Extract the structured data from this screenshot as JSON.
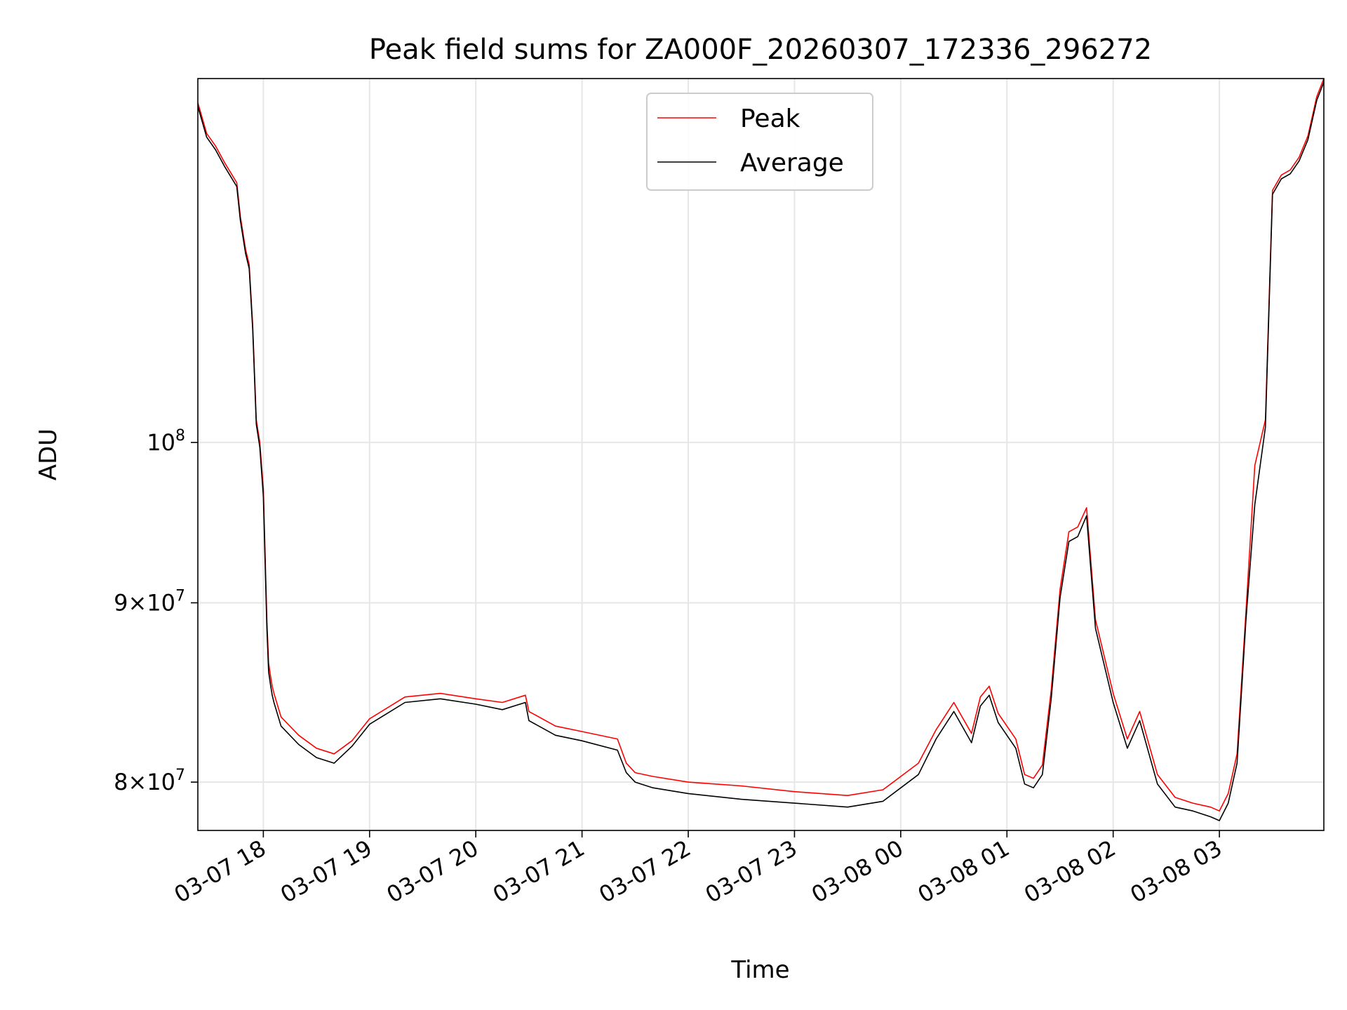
{
  "chart_data": {
    "type": "line",
    "title": "Peak field sums for ZA000F_20260307_172336_296272",
    "xlabel": "Time",
    "ylabel": "ADU",
    "yscale": "log",
    "grid": true,
    "legend_position": "upper-center",
    "xlim": [
      "2026-03-07 17:23",
      "2026-03-08 03:59"
    ],
    "ylim": [
      77500000,
      127000000
    ],
    "x_ticks": [
      {
        "t": "2026-03-07 18:00",
        "label": "03-07 18"
      },
      {
        "t": "2026-03-07 19:00",
        "label": "03-07 19"
      },
      {
        "t": "2026-03-07 20:00",
        "label": "03-07 20"
      },
      {
        "t": "2026-03-07 21:00",
        "label": "03-07 21"
      },
      {
        "t": "2026-03-07 22:00",
        "label": "03-07 22"
      },
      {
        "t": "2026-03-07 23:00",
        "label": "03-07 23"
      },
      {
        "t": "2026-03-08 00:00",
        "label": "03-08 00"
      },
      {
        "t": "2026-03-08 01:00",
        "label": "03-08 01"
      },
      {
        "t": "2026-03-08 02:00",
        "label": "03-08 02"
      },
      {
        "t": "2026-03-08 03:00",
        "label": "03-08 03"
      }
    ],
    "y_ticks": [
      {
        "value": 80000000,
        "mant": "8",
        "base": "10",
        "exp": "7"
      },
      {
        "value": 90000000,
        "mant": "9",
        "base": "10",
        "exp": "7"
      },
      {
        "value": 100000000,
        "mant": "",
        "base": "10",
        "exp": "8"
      }
    ],
    "series": [
      {
        "name": "Peak",
        "color": "#ff0000",
        "x": [
          "2026-03-07 17:23",
          "2026-03-07 17:25",
          "2026-03-07 17:28",
          "2026-03-07 17:33",
          "2026-03-07 17:38",
          "2026-03-07 17:45",
          "2026-03-07 17:47",
          "2026-03-07 17:50",
          "2026-03-07 17:52",
          "2026-03-07 17:54",
          "2026-03-07 17:56",
          "2026-03-07 17:58",
          "2026-03-07 18:00",
          "2026-03-07 18:02",
          "2026-03-07 18:03",
          "2026-03-07 18:04",
          "2026-03-07 18:05",
          "2026-03-07 18:06",
          "2026-03-07 18:10",
          "2026-03-07 18:20",
          "2026-03-07 18:30",
          "2026-03-07 18:40",
          "2026-03-07 18:50",
          "2026-03-07 19:00",
          "2026-03-07 19:20",
          "2026-03-07 19:40",
          "2026-03-07 20:00",
          "2026-03-07 20:15",
          "2026-03-07 20:28",
          "2026-03-07 20:30",
          "2026-03-07 20:45",
          "2026-03-07 21:00",
          "2026-03-07 21:20",
          "2026-03-07 21:25",
          "2026-03-07 21:30",
          "2026-03-07 21:40",
          "2026-03-07 22:00",
          "2026-03-07 22:30",
          "2026-03-07 23:00",
          "2026-03-07 23:30",
          "2026-03-07 23:50",
          "2026-03-08 00:10",
          "2026-03-08 00:20",
          "2026-03-08 00:30",
          "2026-03-08 00:40",
          "2026-03-08 00:45",
          "2026-03-08 00:50",
          "2026-03-08 00:55",
          "2026-03-08 01:05",
          "2026-03-08 01:10",
          "2026-03-08 01:15",
          "2026-03-08 01:20",
          "2026-03-08 01:25",
          "2026-03-08 01:30",
          "2026-03-08 01:35",
          "2026-03-08 01:40",
          "2026-03-08 01:45",
          "2026-03-08 01:50",
          "2026-03-08 02:00",
          "2026-03-08 02:08",
          "2026-03-08 02:15",
          "2026-03-08 02:25",
          "2026-03-08 02:35",
          "2026-03-08 02:45",
          "2026-03-08 02:55",
          "2026-03-08 03:00",
          "2026-03-08 03:05",
          "2026-03-08 03:10",
          "2026-03-08 03:15",
          "2026-03-08 03:20",
          "2026-03-08 03:26",
          "2026-03-08 03:30",
          "2026-03-08 03:35",
          "2026-03-08 03:40",
          "2026-03-08 03:45",
          "2026-03-08 03:50",
          "2026-03-08 03:55",
          "2026-03-08 03:59"
        ],
        "values": [
          125000000,
          124000000,
          122500000,
          121500000,
          120200000,
          118600000,
          116000000,
          113500000,
          112400000,
          108000000,
          101500000,
          100000000,
          97000000,
          89000000,
          86500000,
          85800000,
          85200000,
          84800000,
          83500000,
          82500000,
          81800000,
          81500000,
          82200000,
          83400000,
          84600000,
          84800000,
          84500000,
          84300000,
          84700000,
          83800000,
          83000000,
          82700000,
          82300000,
          81000000,
          80500000,
          80300000,
          80000000,
          79800000,
          79500000,
          79300000,
          79600000,
          81000000,
          82800000,
          84300000,
          82600000,
          84600000,
          85200000,
          83700000,
          82300000,
          80400000,
          80200000,
          80900000,
          85000000,
          90800000,
          94300000,
          94600000,
          95800000,
          89000000,
          84800000,
          82300000,
          83800000,
          80400000,
          79200000,
          78900000,
          78700000,
          78500000,
          79400000,
          81500000,
          89500000,
          98500000,
          101500000,
          118000000,
          119200000,
          119600000,
          120600000,
          122300000,
          125500000,
          127000000
        ]
      },
      {
        "name": "Average",
        "color": "#000000",
        "x": [
          "2026-03-07 17:23",
          "2026-03-07 17:25",
          "2026-03-07 17:28",
          "2026-03-07 17:33",
          "2026-03-07 17:38",
          "2026-03-07 17:45",
          "2026-03-07 17:47",
          "2026-03-07 17:50",
          "2026-03-07 17:52",
          "2026-03-07 17:54",
          "2026-03-07 17:56",
          "2026-03-07 17:58",
          "2026-03-07 18:00",
          "2026-03-07 18:02",
          "2026-03-07 18:03",
          "2026-03-07 18:04",
          "2026-03-07 18:05",
          "2026-03-07 18:06",
          "2026-03-07 18:10",
          "2026-03-07 18:20",
          "2026-03-07 18:30",
          "2026-03-07 18:40",
          "2026-03-07 18:50",
          "2026-03-07 19:00",
          "2026-03-07 19:20",
          "2026-03-07 19:40",
          "2026-03-07 20:00",
          "2026-03-07 20:15",
          "2026-03-07 20:28",
          "2026-03-07 20:30",
          "2026-03-07 20:45",
          "2026-03-07 21:00",
          "2026-03-07 21:20",
          "2026-03-07 21:25",
          "2026-03-07 21:30",
          "2026-03-07 21:40",
          "2026-03-07 22:00",
          "2026-03-07 22:30",
          "2026-03-07 23:00",
          "2026-03-07 23:30",
          "2026-03-07 23:50",
          "2026-03-08 00:10",
          "2026-03-08 00:20",
          "2026-03-08 00:30",
          "2026-03-08 00:40",
          "2026-03-08 00:45",
          "2026-03-08 00:50",
          "2026-03-08 00:55",
          "2026-03-08 01:05",
          "2026-03-08 01:10",
          "2026-03-08 01:15",
          "2026-03-08 01:20",
          "2026-03-08 01:25",
          "2026-03-08 01:30",
          "2026-03-08 01:35",
          "2026-03-08 01:40",
          "2026-03-08 01:45",
          "2026-03-08 01:50",
          "2026-03-08 02:00",
          "2026-03-08 02:08",
          "2026-03-08 02:15",
          "2026-03-08 02:25",
          "2026-03-08 02:35",
          "2026-03-08 02:45",
          "2026-03-08 02:55",
          "2026-03-08 03:00",
          "2026-03-08 03:05",
          "2026-03-08 03:10",
          "2026-03-08 03:15",
          "2026-03-08 03:20",
          "2026-03-08 03:26",
          "2026-03-08 03:30",
          "2026-03-08 03:35",
          "2026-03-08 03:40",
          "2026-03-08 03:45",
          "2026-03-08 03:50",
          "2026-03-08 03:55",
          "2026-03-08 03:59"
        ],
        "values": [
          124700000,
          123700000,
          122200000,
          121200000,
          119900000,
          118300000,
          115700000,
          113200000,
          112100000,
          107700000,
          101200000,
          99700000,
          96500000,
          88500000,
          86000000,
          85300000,
          84700000,
          84300000,
          83000000,
          82000000,
          81300000,
          81000000,
          81900000,
          83100000,
          84300000,
          84500000,
          84200000,
          83900000,
          84300000,
          83300000,
          82500000,
          82200000,
          81700000,
          80500000,
          80000000,
          79700000,
          79400000,
          79100000,
          78900000,
          78700000,
          79000000,
          80400000,
          82300000,
          83800000,
          82100000,
          84100000,
          84700000,
          83200000,
          81800000,
          79900000,
          79700000,
          80400000,
          84500000,
          90300000,
          93700000,
          94000000,
          95300000,
          88500000,
          84300000,
          81800000,
          83300000,
          79900000,
          78700000,
          78500000,
          78200000,
          78000000,
          78900000,
          81000000,
          89000000,
          96000000,
          101000000,
          117700000,
          118900000,
          119300000,
          120300000,
          122000000,
          125200000,
          126700000
        ]
      }
    ]
  }
}
